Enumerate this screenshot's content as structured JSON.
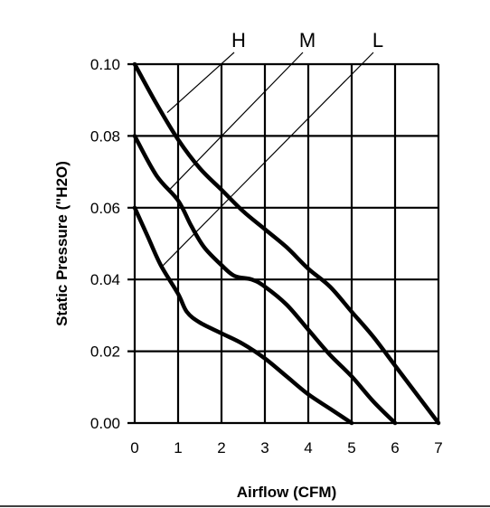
{
  "chart_data": {
    "type": "line",
    "xlabel": "Airflow (CFM)",
    "ylabel": "Static Pressure (\"H2O)",
    "xlim": [
      0,
      7
    ],
    "ylim": [
      0,
      0.1
    ],
    "x_ticks": [
      "0",
      "1",
      "2",
      "3",
      "4",
      "5",
      "6",
      "7"
    ],
    "y_ticks": [
      "0.00",
      "0.02",
      "0.04",
      "0.06",
      "0.08",
      "0.10"
    ],
    "grid": true,
    "legend": "curve labels above plot",
    "series": [
      {
        "name": "H",
        "points": [
          [
            0,
            0.1
          ],
          [
            0.5,
            0.089
          ],
          [
            1,
            0.079
          ],
          [
            1.5,
            0.071
          ],
          [
            2,
            0.065
          ],
          [
            2.5,
            0.059
          ],
          [
            3,
            0.054
          ],
          [
            3.5,
            0.049
          ],
          [
            4,
            0.043
          ],
          [
            4.5,
            0.038
          ],
          [
            5,
            0.031
          ],
          [
            5.5,
            0.024
          ],
          [
            6,
            0.016
          ],
          [
            6.5,
            0.008
          ],
          [
            7,
            0.0
          ]
        ]
      },
      {
        "name": "M",
        "points": [
          [
            0,
            0.08
          ],
          [
            0.5,
            0.069
          ],
          [
            1,
            0.062
          ],
          [
            1.3,
            0.055
          ],
          [
            1.6,
            0.049
          ],
          [
            2,
            0.044
          ],
          [
            2.3,
            0.041
          ],
          [
            2.7,
            0.04
          ],
          [
            3,
            0.038
          ],
          [
            3.5,
            0.033
          ],
          [
            4,
            0.026
          ],
          [
            4.5,
            0.019
          ],
          [
            5,
            0.013
          ],
          [
            5.5,
            0.006
          ],
          [
            6,
            0.0
          ]
        ]
      },
      {
        "name": "L",
        "points": [
          [
            0,
            0.06
          ],
          [
            0.3,
            0.052
          ],
          [
            0.6,
            0.044
          ],
          [
            1,
            0.036
          ],
          [
            1.2,
            0.031
          ],
          [
            1.5,
            0.028
          ],
          [
            2,
            0.025
          ],
          [
            2.5,
            0.022
          ],
          [
            3,
            0.018
          ],
          [
            3.5,
            0.013
          ],
          [
            4,
            0.008
          ],
          [
            4.5,
            0.004
          ],
          [
            5,
            0.0
          ]
        ]
      }
    ],
    "label_leaders": [
      {
        "name": "H",
        "from": [
          0.75,
          0.0865
        ]
      },
      {
        "name": "M",
        "from": [
          0.8,
          0.065
        ]
      },
      {
        "name": "L",
        "from": [
          0.62,
          0.0435
        ]
      }
    ]
  }
}
